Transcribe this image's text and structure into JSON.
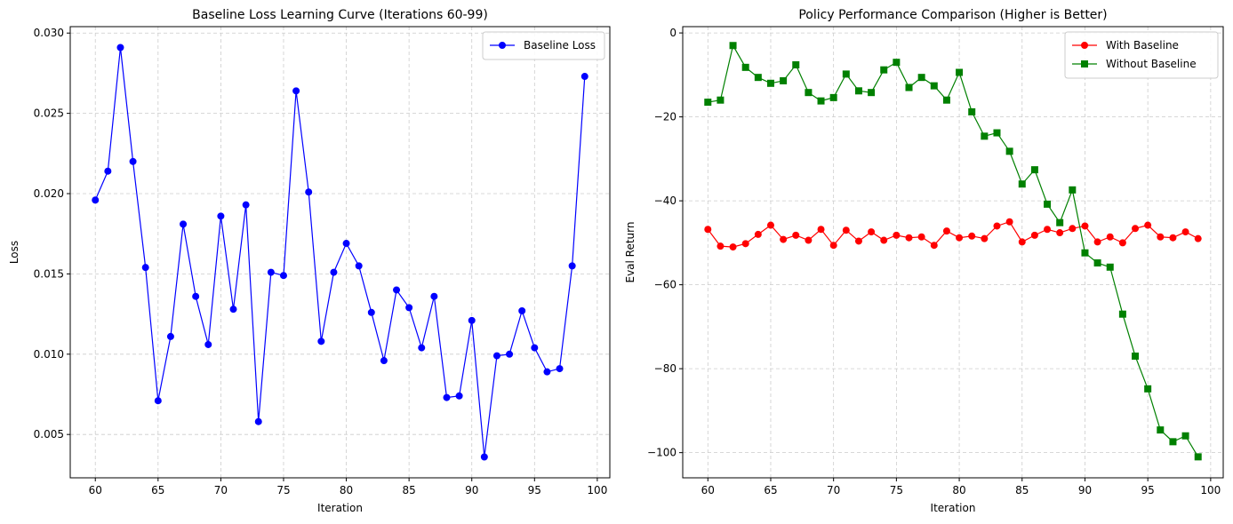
{
  "chart_data": [
    {
      "type": "line",
      "title": "Baseline Loss Learning Curve (Iterations 60-99)",
      "xlabel": "Iteration",
      "ylabel": "Loss",
      "xlim": [
        58,
        101
      ],
      "ylim": [
        0.0023,
        0.0304
      ],
      "xticks": [
        60,
        65,
        70,
        75,
        80,
        85,
        90,
        95,
        100
      ],
      "yticks": [
        0.005,
        0.01,
        0.015,
        0.02,
        0.025,
        0.03
      ],
      "ytick_labels": [
        "0.005",
        "0.010",
        "0.015",
        "0.020",
        "0.025",
        "0.030"
      ],
      "grid": true,
      "legend_position": "top-right",
      "x": [
        60,
        61,
        62,
        63,
        64,
        65,
        66,
        67,
        68,
        69,
        70,
        71,
        72,
        73,
        74,
        75,
        76,
        77,
        78,
        79,
        80,
        81,
        82,
        83,
        84,
        85,
        86,
        87,
        88,
        89,
        90,
        91,
        92,
        93,
        94,
        95,
        96,
        97,
        98,
        99
      ],
      "series": [
        {
          "name": "Baseline Loss",
          "color": "#0000ff",
          "marker": "circle",
          "values": [
            0.0196,
            0.0214,
            0.0291,
            0.022,
            0.0154,
            0.0071,
            0.0111,
            0.0181,
            0.0136,
            0.0106,
            0.0186,
            0.0128,
            0.0193,
            0.0058,
            0.0151,
            0.0149,
            0.0264,
            0.0201,
            0.0108,
            0.0151,
            0.0169,
            0.0155,
            0.0126,
            0.0096,
            0.014,
            0.0129,
            0.0104,
            0.0136,
            0.0073,
            0.0074,
            0.0121,
            0.0036,
            0.0099,
            0.01,
            0.0127,
            0.0104,
            0.0089,
            0.0091,
            0.0155,
            0.0273
          ]
        }
      ]
    },
    {
      "type": "line",
      "title": "Policy Performance Comparison (Higher is Better)",
      "xlabel": "Iteration",
      "ylabel": "Eval Return",
      "xlim": [
        58,
        101
      ],
      "ylim": [
        -106,
        1.5
      ],
      "xticks": [
        60,
        65,
        70,
        75,
        80,
        85,
        90,
        95,
        100
      ],
      "yticks": [
        0,
        -20,
        -40,
        -60,
        -80,
        -100
      ],
      "ytick_labels": [
        "0",
        "−20",
        "−40",
        "−60",
        "−80",
        "−100"
      ],
      "grid": true,
      "legend_position": "top-right",
      "x": [
        60,
        61,
        62,
        63,
        64,
        65,
        66,
        67,
        68,
        69,
        70,
        71,
        72,
        73,
        74,
        75,
        76,
        77,
        78,
        79,
        80,
        81,
        82,
        83,
        84,
        85,
        86,
        87,
        88,
        89,
        90,
        91,
        92,
        93,
        94,
        95,
        96,
        97,
        98,
        99
      ],
      "series": [
        {
          "name": "With Baseline",
          "color": "#ff0000",
          "marker": "circle",
          "values": [
            -46.8,
            -50.8,
            -51.0,
            -50.2,
            -48.0,
            -45.8,
            -49.2,
            -48.2,
            -49.4,
            -46.8,
            -50.6,
            -47.0,
            -49.6,
            -47.4,
            -49.4,
            -48.2,
            -48.8,
            -48.6,
            -50.6,
            -47.2,
            -48.8,
            -48.4,
            -49.0,
            -46.0,
            -45.0,
            -49.8,
            -48.2,
            -46.8,
            -47.6,
            -46.6,
            -46.0,
            -49.8,
            -48.6,
            -50.0,
            -46.6,
            -45.8,
            -48.6,
            -48.8,
            -47.4,
            -49.0
          ]
        },
        {
          "name": "Without Baseline",
          "color": "#008000",
          "marker": "square",
          "values": [
            -16.5,
            -16.0,
            -3.0,
            -8.2,
            -10.6,
            -12.0,
            -11.4,
            -7.6,
            -14.2,
            -16.2,
            -15.4,
            -9.8,
            -13.8,
            -14.2,
            -8.8,
            -7.0,
            -13.0,
            -10.6,
            -12.6,
            -16.0,
            -9.4,
            -18.8,
            -24.6,
            -23.8,
            -28.2,
            -36.0,
            -32.6,
            -40.8,
            -45.2,
            -37.4,
            -52.4,
            -54.8,
            -55.8,
            -67.0,
            -77.0,
            -84.8,
            -94.6,
            -97.4,
            -96.0,
            -101.0
          ]
        }
      ]
    }
  ]
}
